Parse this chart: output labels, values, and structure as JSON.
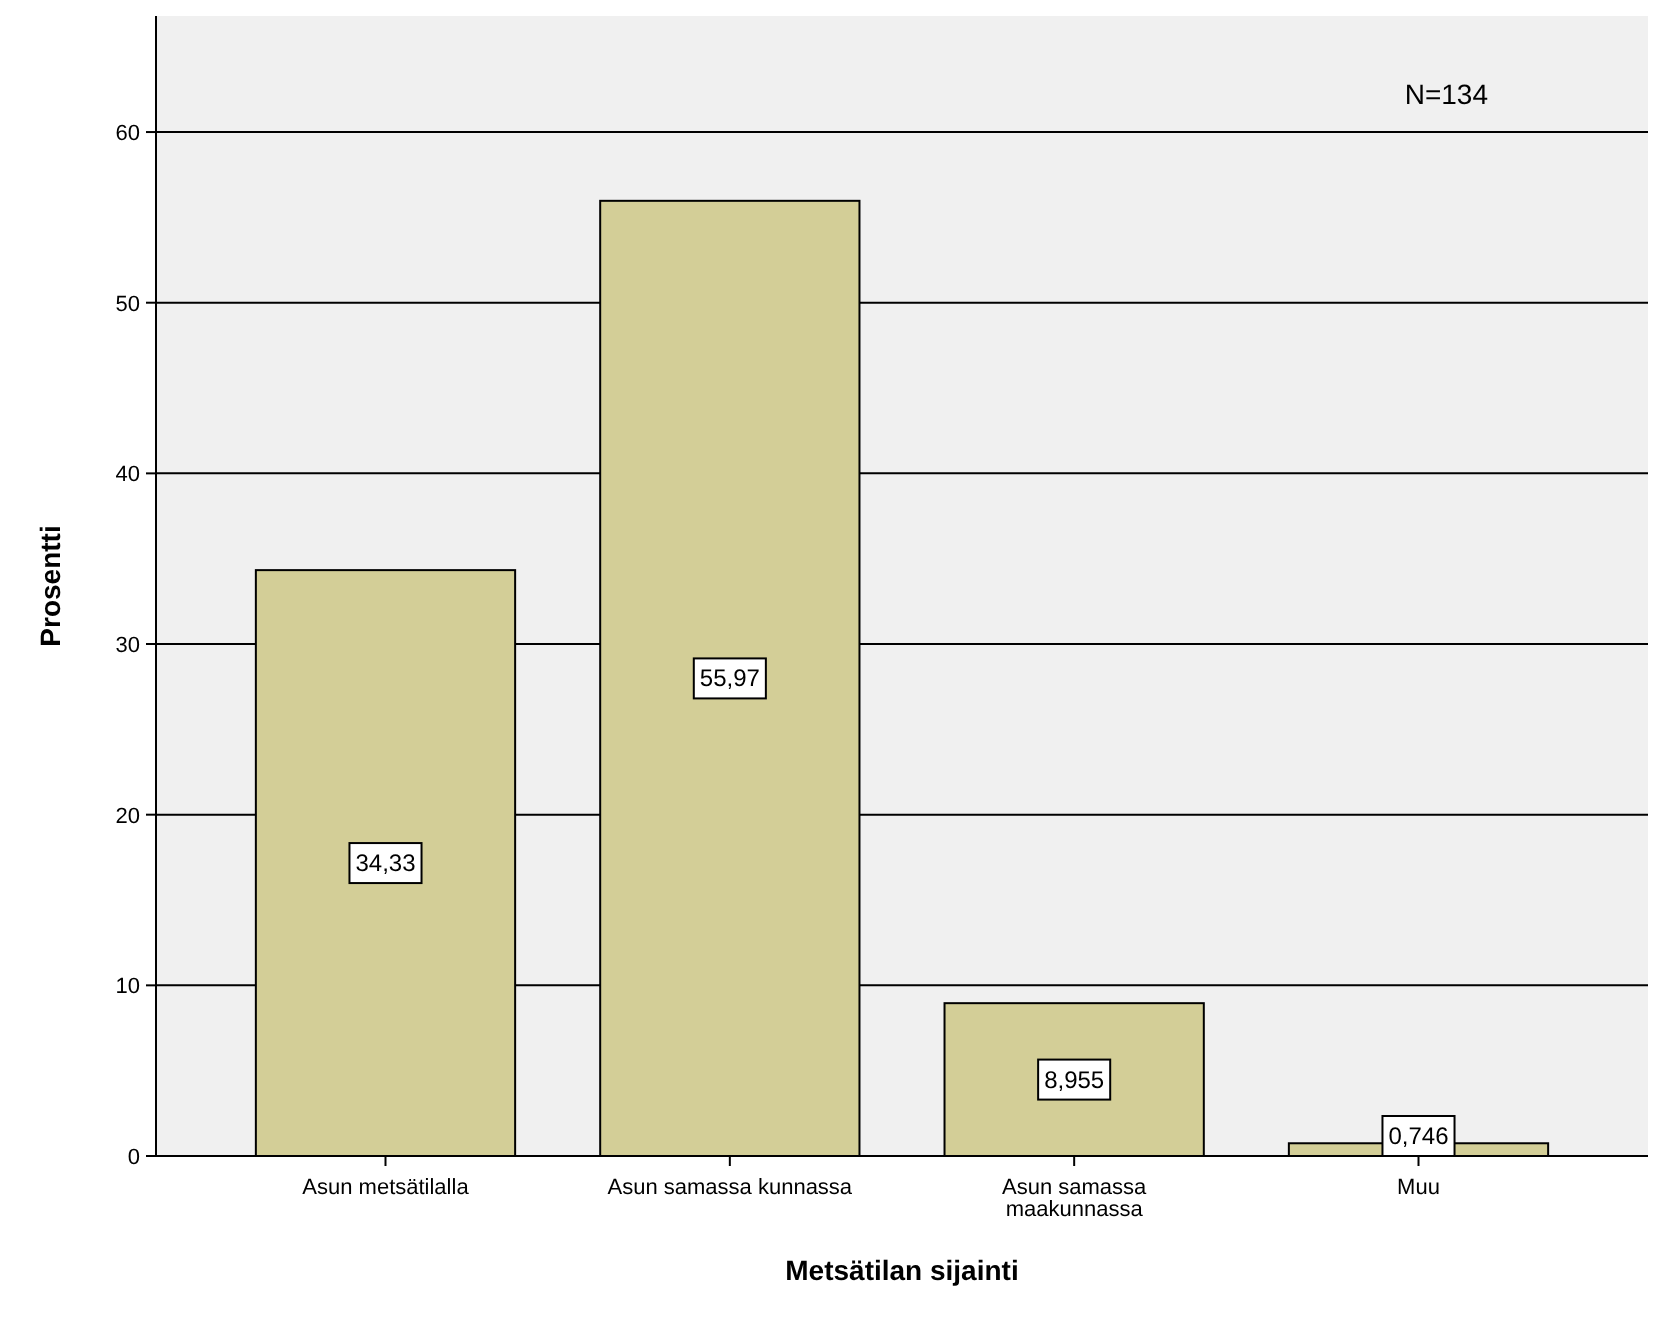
{
  "chart_data": {
    "type": "bar",
    "xlabel": "Metsätilan sijainti",
    "ylabel": "Prosentti",
    "categories": [
      "Asun metsätilalla",
      "Asun samassa kunnassa",
      "Asun samassa maakunnassa",
      "Muu"
    ],
    "values": [
      34.33,
      55.97,
      8.955,
      0.746
    ],
    "value_labels": [
      "34,33",
      "55,97",
      "8,955",
      "0,746"
    ],
    "color": "#d3ce97",
    "ylim": [
      0,
      66.8
    ],
    "yticks": [
      0,
      10,
      20,
      30,
      40,
      50,
      60
    ],
    "grid": "y",
    "annotations": [
      "N=134"
    ]
  }
}
